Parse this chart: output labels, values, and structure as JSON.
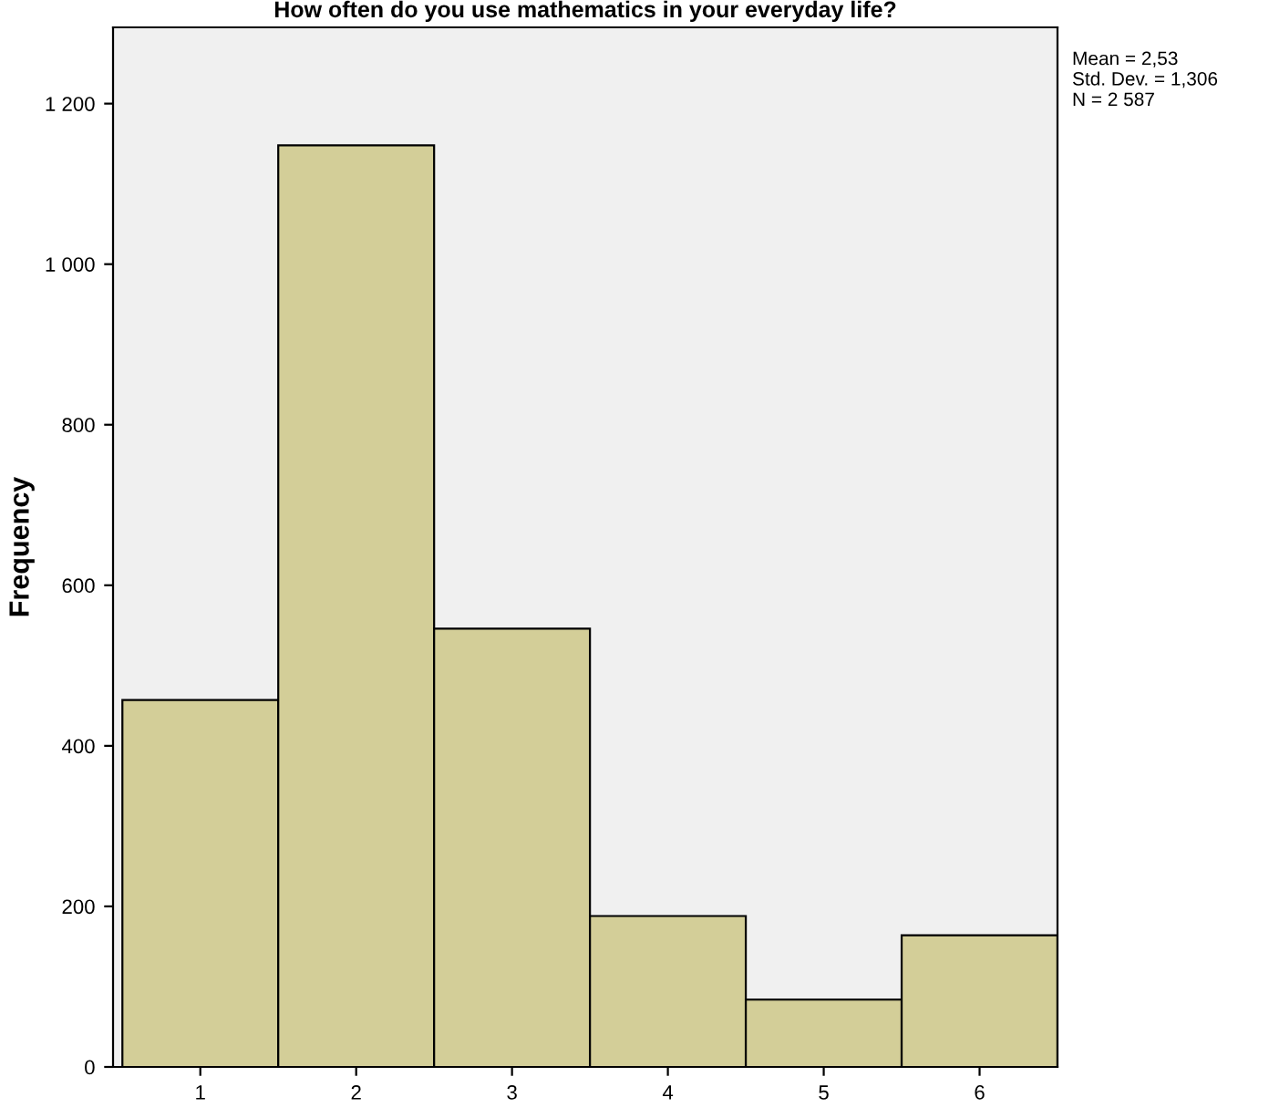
{
  "chart_data": {
    "type": "histogram",
    "title": "How often do you use mathematics in your everyday life?",
    "ylabel": "Frequency",
    "bins": [
      0.5,
      1.5,
      2.5,
      3.5,
      4.5,
      5.5,
      6.5
    ],
    "values": [
      457,
      1148,
      546,
      188,
      84,
      164
    ],
    "color": "#d3ce98",
    "xlim": [
      0.44,
      6.5
    ],
    "xticks": [
      1,
      2,
      3,
      4,
      5,
      6
    ],
    "ylim": [
      0,
      1295
    ],
    "yticks": [
      0,
      200,
      400,
      600,
      800,
      {
        "value": 1000,
        "label": "1 000"
      },
      {
        "value": 1200,
        "label": "1 200"
      }
    ],
    "grid": false,
    "annotations": [
      "Mean = 2,53\nStd. Dev. = 1,306\nN = 2 587"
    ]
  }
}
